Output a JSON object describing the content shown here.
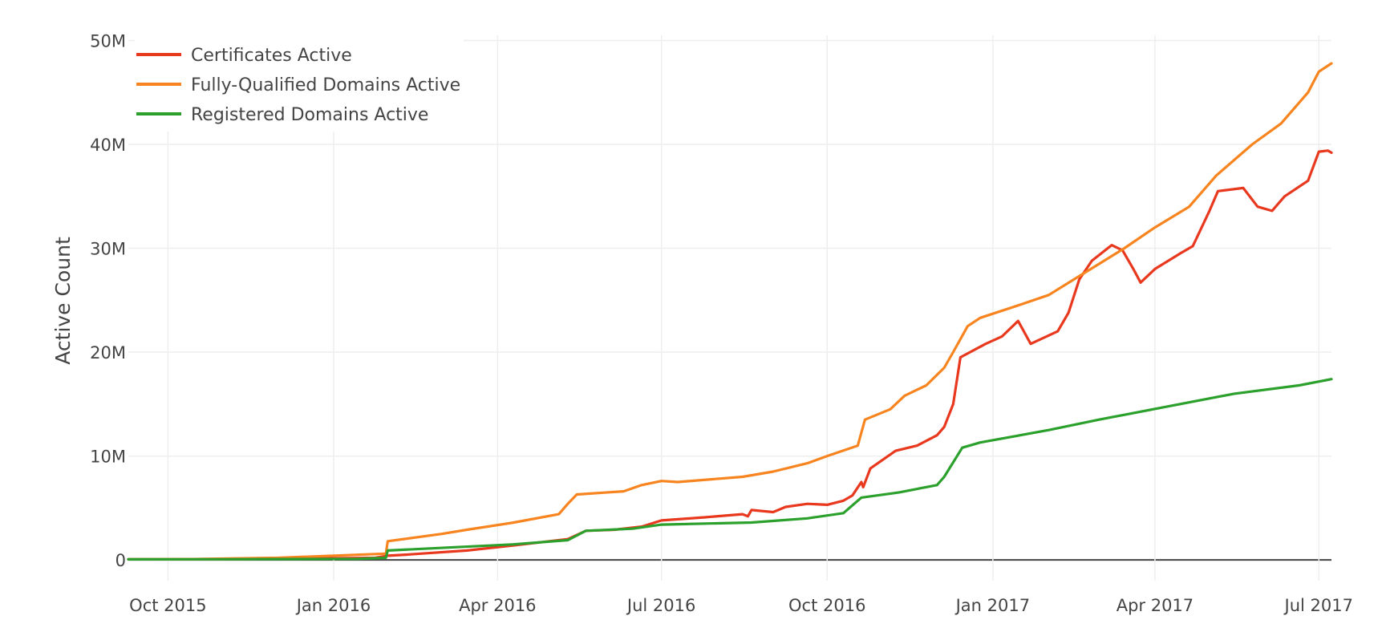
{
  "chart_data": {
    "type": "line",
    "title": "",
    "xlabel": "",
    "ylabel": "Active Count",
    "x_axis": {
      "type": "date",
      "range": [
        "2015-09-09",
        "2017-07-08"
      ],
      "ticks": [
        {
          "date": "2015-10-01",
          "label": "Oct 2015"
        },
        {
          "date": "2016-01-01",
          "label": "Jan 2016"
        },
        {
          "date": "2016-04-01",
          "label": "Apr 2016"
        },
        {
          "date": "2016-07-01",
          "label": "Jul 2016"
        },
        {
          "date": "2016-10-01",
          "label": "Oct 2016"
        },
        {
          "date": "2017-01-01",
          "label": "Jan 2017"
        },
        {
          "date": "2017-04-01",
          "label": "Apr 2017"
        },
        {
          "date": "2017-07-01",
          "label": "Jul 2017"
        }
      ]
    },
    "y_axis": {
      "range": [
        -2000000,
        50500000
      ],
      "ticks": [
        {
          "value": 0,
          "label": "0"
        },
        {
          "value": 10000000,
          "label": "10M"
        },
        {
          "value": 20000000,
          "label": "20M"
        },
        {
          "value": 30000000,
          "label": "30M"
        },
        {
          "value": 40000000,
          "label": "40M"
        },
        {
          "value": 50000000,
          "label": "50M"
        }
      ]
    },
    "grid": true,
    "legend_position": "top-left",
    "series": [
      {
        "name": "Certificates Active",
        "color": "#e8381e",
        "points": [
          [
            "2015-09-09",
            50000
          ],
          [
            "2015-10-15",
            60000
          ],
          [
            "2015-12-01",
            100000
          ],
          [
            "2016-01-24",
            200000
          ],
          [
            "2016-01-31",
            400000
          ],
          [
            "2016-02-10",
            500000
          ],
          [
            "2016-03-15",
            900000
          ],
          [
            "2016-04-10",
            1400000
          ],
          [
            "2016-05-10",
            2000000
          ],
          [
            "2016-05-20",
            2800000
          ],
          [
            "2016-06-05",
            2900000
          ],
          [
            "2016-06-20",
            3200000
          ],
          [
            "2016-07-01",
            3800000
          ],
          [
            "2016-07-25",
            4100000
          ],
          [
            "2016-08-15",
            4400000
          ],
          [
            "2016-08-18",
            4200000
          ],
          [
            "2016-08-20",
            4800000
          ],
          [
            "2016-09-01",
            4600000
          ],
          [
            "2016-09-08",
            5100000
          ],
          [
            "2016-09-20",
            5400000
          ],
          [
            "2016-10-01",
            5300000
          ],
          [
            "2016-10-10",
            5700000
          ],
          [
            "2016-10-15",
            6200000
          ],
          [
            "2016-10-20",
            7500000
          ],
          [
            "2016-10-21",
            7000000
          ],
          [
            "2016-10-25",
            8800000
          ],
          [
            "2016-11-08",
            10500000
          ],
          [
            "2016-11-20",
            11000000
          ],
          [
            "2016-12-01",
            12000000
          ],
          [
            "2016-12-05",
            12800000
          ],
          [
            "2016-12-10",
            15000000
          ],
          [
            "2016-12-14",
            19500000
          ],
          [
            "2016-12-28",
            20800000
          ],
          [
            "2017-01-06",
            21500000
          ],
          [
            "2017-01-15",
            23000000
          ],
          [
            "2017-01-22",
            20800000
          ],
          [
            "2017-02-06",
            22000000
          ],
          [
            "2017-02-12",
            23800000
          ],
          [
            "2017-02-18",
            27000000
          ],
          [
            "2017-02-25",
            28800000
          ],
          [
            "2017-03-08",
            30300000
          ],
          [
            "2017-03-14",
            29800000
          ],
          [
            "2017-03-20",
            28000000
          ],
          [
            "2017-03-24",
            26700000
          ],
          [
            "2017-04-01",
            28000000
          ],
          [
            "2017-04-15",
            29500000
          ],
          [
            "2017-04-22",
            30200000
          ],
          [
            "2017-05-01",
            33500000
          ],
          [
            "2017-05-06",
            35500000
          ],
          [
            "2017-05-20",
            35800000
          ],
          [
            "2017-05-28",
            34000000
          ],
          [
            "2017-06-05",
            33600000
          ],
          [
            "2017-06-12",
            35000000
          ],
          [
            "2017-06-25",
            36500000
          ],
          [
            "2017-07-01",
            39300000
          ],
          [
            "2017-07-06",
            39400000
          ],
          [
            "2017-07-08",
            39200000
          ]
        ]
      },
      {
        "name": "Fully-Qualified Domains Active",
        "color": "#f7841f",
        "points": [
          [
            "2015-09-09",
            50000
          ],
          [
            "2015-10-15",
            80000
          ],
          [
            "2015-12-01",
            200000
          ],
          [
            "2016-01-30",
            600000
          ],
          [
            "2016-01-31",
            1800000
          ],
          [
            "2016-03-01",
            2500000
          ],
          [
            "2016-03-15",
            2900000
          ],
          [
            "2016-04-10",
            3600000
          ],
          [
            "2016-05-05",
            4400000
          ],
          [
            "2016-05-10",
            5400000
          ],
          [
            "2016-05-15",
            6300000
          ],
          [
            "2016-06-10",
            6600000
          ],
          [
            "2016-06-20",
            7200000
          ],
          [
            "2016-07-01",
            7600000
          ],
          [
            "2016-07-10",
            7500000
          ],
          [
            "2016-08-15",
            8000000
          ],
          [
            "2016-09-01",
            8500000
          ],
          [
            "2016-09-20",
            9300000
          ],
          [
            "2016-10-01",
            10000000
          ],
          [
            "2016-10-18",
            11000000
          ],
          [
            "2016-10-22",
            13500000
          ],
          [
            "2016-11-05",
            14500000
          ],
          [
            "2016-11-13",
            15800000
          ],
          [
            "2016-11-25",
            16800000
          ],
          [
            "2016-12-05",
            18500000
          ],
          [
            "2016-12-10",
            20000000
          ],
          [
            "2016-12-18",
            22500000
          ],
          [
            "2016-12-25",
            23300000
          ],
          [
            "2017-01-15",
            24500000
          ],
          [
            "2017-02-01",
            25500000
          ],
          [
            "2017-02-15",
            27000000
          ],
          [
            "2017-03-01",
            28500000
          ],
          [
            "2017-03-15",
            30000000
          ],
          [
            "2017-04-01",
            32000000
          ],
          [
            "2017-04-20",
            34000000
          ],
          [
            "2017-05-05",
            37000000
          ],
          [
            "2017-05-25",
            40000000
          ],
          [
            "2017-06-10",
            42000000
          ],
          [
            "2017-06-25",
            45000000
          ],
          [
            "2017-07-01",
            47000000
          ],
          [
            "2017-07-08",
            47800000
          ]
        ]
      },
      {
        "name": "Registered Domains Active",
        "color": "#2ca02c",
        "points": [
          [
            "2015-09-09",
            50000
          ],
          [
            "2015-11-01",
            60000
          ],
          [
            "2016-01-15",
            100000
          ],
          [
            "2016-01-30",
            200000
          ],
          [
            "2016-01-31",
            900000
          ],
          [
            "2016-04-10",
            1500000
          ],
          [
            "2016-05-10",
            1900000
          ],
          [
            "2016-05-20",
            2800000
          ],
          [
            "2016-06-15",
            3000000
          ],
          [
            "2016-07-01",
            3400000
          ],
          [
            "2016-08-20",
            3600000
          ],
          [
            "2016-09-20",
            4000000
          ],
          [
            "2016-10-10",
            4500000
          ],
          [
            "2016-10-20",
            6000000
          ],
          [
            "2016-11-10",
            6500000
          ],
          [
            "2016-12-01",
            7200000
          ],
          [
            "2016-12-05",
            8000000
          ],
          [
            "2016-12-15",
            10800000
          ],
          [
            "2016-12-25",
            11300000
          ],
          [
            "2017-02-01",
            12500000
          ],
          [
            "2017-03-01",
            13500000
          ],
          [
            "2017-04-15",
            15000000
          ],
          [
            "2017-05-15",
            16000000
          ],
          [
            "2017-06-20",
            16800000
          ],
          [
            "2017-07-08",
            17400000
          ]
        ]
      }
    ]
  }
}
